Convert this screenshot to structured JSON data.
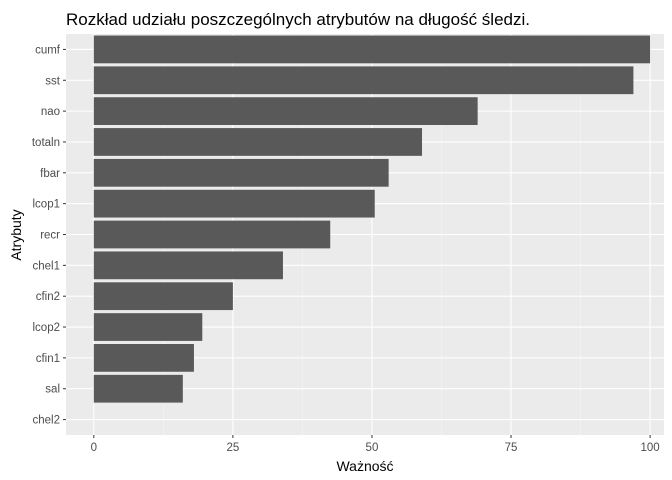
{
  "chart_data": {
    "type": "bar",
    "orientation": "horizontal",
    "title": "Rozkład udziału poszczególnych atrybutów na długość śledzi.",
    "xlabel": "Ważność",
    "ylabel": "Atrybuty",
    "categories": [
      "cumf",
      "sst",
      "nao",
      "totaln",
      "fbar",
      "lcop1",
      "recr",
      "chel1",
      "cfin2",
      "lcop2",
      "cfin1",
      "sal",
      "chel2"
    ],
    "values": [
      100,
      97,
      69,
      59,
      53,
      50.5,
      42.5,
      34,
      25,
      19.5,
      18,
      16,
      0
    ],
    "xlim": [
      -5,
      102.5
    ],
    "xticks": [
      0,
      25,
      50,
      75,
      100
    ],
    "grid": true,
    "legend": "none",
    "colors": {
      "bar": "#595959",
      "panel": "#ebebeb",
      "grid_major": "#ffffff",
      "grid_minor": "#f5f5f5",
      "tick_text": "#4d4d4d"
    }
  }
}
